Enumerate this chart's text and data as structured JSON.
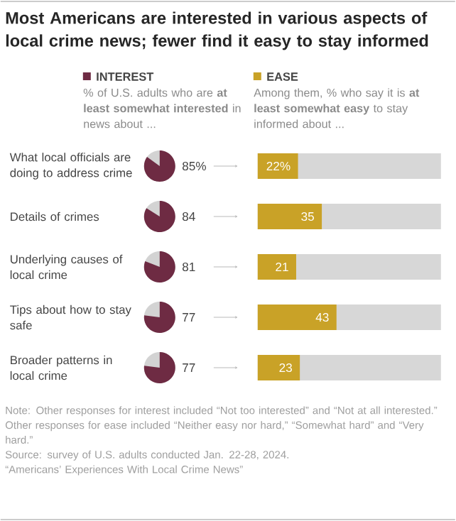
{
  "chart_data": [
    {
      "type": "other",
      "title": "Most Americans are interested in various aspects of local crime news; fewer find it easy to stay informed",
      "categories": [
        "What local officials are doing to address crime",
        "Details of crimes",
        "Underlying causes of local crime",
        "Tips about how to stay safe",
        "Broader patterns in local crime"
      ],
      "values": [
        85,
        84,
        81,
        77,
        77
      ],
      "value_labels": [
        "85%",
        "84",
        "81",
        "77",
        "77"
      ],
      "color": "#6e2b43",
      "annotations": [
        "INTEREST",
        "% of U.S. adults who are **at least somewhat interested** in news about ..."
      ]
    },
    {
      "type": "bar",
      "orientation": "horizontal",
      "categories": [
        null,
        null,
        null,
        null,
        null
      ],
      "values": [
        22,
        35,
        21,
        43,
        23
      ],
      "value_labels": [
        "22%",
        "35",
        "21",
        "43",
        "23"
      ],
      "color": "#c9a227",
      "xlim": [
        0,
        100
      ],
      "annotations": [
        "EASE",
        "Among them, % who say it is **at least somewhat easy** to stay informed about ...",
        "Note: Other responses for interest included “Not too interested” and “Not at all interested.” Other responses for ease included “Neither easy nor hard,” “Somewhat hard” and “Very hard.”",
        "Source: survey of U.S. adults conducted Jan. 22-28, 2024.",
        "“Americans’ Experiences With Local Crime News”"
      ]
    }
  ]
}
